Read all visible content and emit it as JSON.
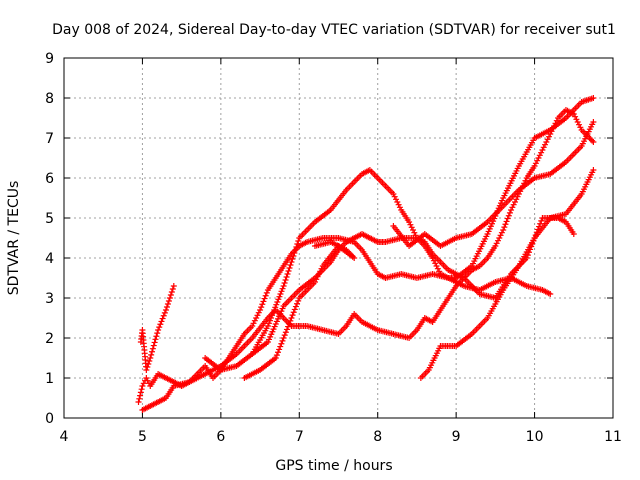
{
  "chart_data": {
    "type": "scatter",
    "title": "Day 008 of 2024, Sidereal Day-to-day VTEC variation (SDTVAR) for receiver sut1",
    "xlabel": "GPS time / hours",
    "ylabel": "SDTVAR / TECUs",
    "xlim": [
      4,
      11
    ],
    "ylim": [
      0,
      9
    ],
    "xticks": [
      "4",
      "5",
      "6",
      "7",
      "8",
      "9",
      "10",
      "11"
    ],
    "yticks": [
      "0",
      "1",
      "2",
      "3",
      "4",
      "5",
      "6",
      "7",
      "8",
      "9"
    ],
    "grid": true,
    "marker": "+",
    "series_color": "#ff0000",
    "series": [
      {
        "points": [
          [
            4.98,
            1.9
          ],
          [
            5.0,
            2.2
          ],
          [
            5.05,
            1.2
          ],
          [
            5.1,
            1.5
          ],
          [
            5.2,
            2.2
          ],
          [
            5.3,
            2.7
          ],
          [
            5.4,
            3.3
          ]
        ]
      },
      {
        "points": [
          [
            4.95,
            0.4
          ],
          [
            5.0,
            0.8
          ],
          [
            5.05,
            1.0
          ],
          [
            5.1,
            0.8
          ],
          [
            5.2,
            1.1
          ],
          [
            5.3,
            1.0
          ],
          [
            5.4,
            0.9
          ],
          [
            5.5,
            0.8
          ],
          [
            5.6,
            0.9
          ],
          [
            5.7,
            1.1
          ],
          [
            5.8,
            1.3
          ],
          [
            5.9,
            1.0
          ],
          [
            6.0,
            1.2
          ],
          [
            6.1,
            1.5
          ],
          [
            6.2,
            1.8
          ],
          [
            6.3,
            2.1
          ],
          [
            6.4,
            2.3
          ],
          [
            6.5,
            2.7
          ],
          [
            6.6,
            3.2
          ],
          [
            6.7,
            3.5
          ],
          [
            6.8,
            3.8
          ],
          [
            6.9,
            4.1
          ],
          [
            7.0,
            4.3
          ],
          [
            7.1,
            4.4
          ],
          [
            7.3,
            4.5
          ],
          [
            7.5,
            4.5
          ],
          [
            7.7,
            4.4
          ],
          [
            7.8,
            4.2
          ],
          [
            7.9,
            3.9
          ],
          [
            8.0,
            3.6
          ],
          [
            8.1,
            3.5
          ],
          [
            8.3,
            3.6
          ],
          [
            8.5,
            3.5
          ],
          [
            8.7,
            3.6
          ],
          [
            8.9,
            3.5
          ],
          [
            9.1,
            3.3
          ],
          [
            9.3,
            3.2
          ],
          [
            9.5,
            3.4
          ],
          [
            9.7,
            3.5
          ],
          [
            9.9,
            3.3
          ],
          [
            10.1,
            3.2
          ],
          [
            10.2,
            3.1
          ]
        ]
      },
      {
        "points": [
          [
            5.0,
            0.2
          ],
          [
            5.1,
            0.3
          ],
          [
            5.2,
            0.4
          ],
          [
            5.3,
            0.5
          ],
          [
            5.4,
            0.8
          ],
          [
            5.6,
            0.9
          ],
          [
            5.8,
            1.1
          ],
          [
            6.0,
            1.3
          ],
          [
            6.2,
            1.6
          ],
          [
            6.4,
            2.0
          ],
          [
            6.6,
            2.5
          ],
          [
            6.7,
            2.7
          ],
          [
            6.8,
            2.5
          ],
          [
            6.9,
            2.3
          ],
          [
            7.1,
            2.3
          ],
          [
            7.3,
            2.2
          ],
          [
            7.5,
            2.1
          ],
          [
            7.6,
            2.3
          ],
          [
            7.7,
            2.6
          ],
          [
            7.8,
            2.4
          ],
          [
            8.0,
            2.2
          ],
          [
            8.2,
            2.1
          ],
          [
            8.4,
            2.0
          ],
          [
            8.5,
            2.2
          ],
          [
            8.6,
            2.5
          ],
          [
            8.7,
            2.4
          ],
          [
            8.8,
            2.7
          ],
          [
            8.9,
            3.0
          ],
          [
            9.0,
            3.3
          ],
          [
            9.1,
            3.5
          ],
          [
            9.2,
            3.7
          ],
          [
            9.3,
            3.8
          ],
          [
            9.4,
            4.0
          ],
          [
            9.5,
            4.3
          ],
          [
            9.6,
            4.7
          ],
          [
            9.7,
            5.2
          ],
          [
            9.8,
            5.6
          ],
          [
            9.9,
            6.0
          ],
          [
            10.0,
            6.3
          ],
          [
            10.1,
            6.7
          ],
          [
            10.2,
            7.1
          ],
          [
            10.3,
            7.5
          ],
          [
            10.4,
            7.7
          ],
          [
            10.5,
            7.6
          ],
          [
            10.6,
            7.2
          ],
          [
            10.7,
            7.0
          ],
          [
            10.75,
            6.9
          ]
        ]
      },
      {
        "points": [
          [
            5.8,
            1.5
          ],
          [
            6.0,
            1.2
          ],
          [
            6.2,
            1.3
          ],
          [
            6.4,
            1.6
          ],
          [
            6.6,
            1.9
          ],
          [
            6.8,
            2.8
          ],
          [
            7.0,
            3.2
          ],
          [
            7.2,
            3.5
          ],
          [
            7.4,
            3.9
          ],
          [
            7.5,
            4.2
          ],
          [
            7.6,
            4.4
          ],
          [
            7.7,
            4.5
          ],
          [
            7.8,
            4.6
          ],
          [
            7.9,
            4.5
          ],
          [
            8.0,
            4.4
          ],
          [
            8.1,
            4.4
          ],
          [
            8.3,
            4.5
          ],
          [
            8.5,
            4.5
          ],
          [
            8.6,
            4.4
          ],
          [
            8.7,
            4.1
          ],
          [
            8.9,
            3.7
          ],
          [
            9.1,
            3.5
          ],
          [
            9.3,
            3.1
          ],
          [
            9.5,
            3.0
          ],
          [
            9.7,
            3.6
          ],
          [
            9.9,
            4.0
          ],
          [
            10.0,
            4.5
          ],
          [
            10.1,
            5.0
          ],
          [
            10.3,
            5.0
          ],
          [
            10.4,
            4.9
          ],
          [
            10.5,
            4.6
          ]
        ]
      },
      {
        "points": [
          [
            6.3,
            1.0
          ],
          [
            6.5,
            1.2
          ],
          [
            6.7,
            1.5
          ],
          [
            6.8,
            2.0
          ],
          [
            6.9,
            2.5
          ],
          [
            7.0,
            3.0
          ],
          [
            7.2,
            3.4
          ],
          [
            7.3,
            3.8
          ],
          [
            7.5,
            4.3
          ],
          [
            7.7,
            4.0
          ],
          [
            7.6,
            4.2
          ],
          [
            7.4,
            4.4
          ],
          [
            7.2,
            4.3
          ]
        ]
      },
      {
        "points": [
          [
            6.4,
            1.6
          ],
          [
            6.6,
            2.3
          ],
          [
            6.8,
            3.3
          ],
          [
            7.0,
            4.5
          ],
          [
            7.2,
            4.9
          ],
          [
            7.4,
            5.2
          ],
          [
            7.6,
            5.7
          ],
          [
            7.8,
            6.1
          ],
          [
            7.9,
            6.2
          ],
          [
            8.0,
            6.0
          ],
          [
            8.1,
            5.8
          ],
          [
            8.2,
            5.6
          ],
          [
            8.3,
            5.2
          ],
          [
            8.4,
            4.9
          ],
          [
            8.5,
            4.5
          ],
          [
            8.6,
            4.3
          ],
          [
            8.7,
            4.0
          ],
          [
            8.8,
            3.6
          ],
          [
            8.9,
            3.5
          ],
          [
            9.0,
            3.5
          ],
          [
            9.2,
            3.8
          ],
          [
            9.4,
            4.6
          ],
          [
            9.6,
            5.5
          ],
          [
            9.8,
            6.3
          ],
          [
            10.0,
            7.0
          ],
          [
            10.2,
            7.2
          ],
          [
            10.4,
            7.5
          ],
          [
            10.6,
            7.9
          ],
          [
            10.75,
            8.0
          ]
        ]
      },
      {
        "points": [
          [
            8.55,
            1.0
          ],
          [
            8.65,
            1.2
          ],
          [
            8.8,
            1.8
          ],
          [
            9.0,
            1.8
          ],
          [
            9.2,
            2.1
          ],
          [
            9.4,
            2.5
          ],
          [
            9.6,
            3.2
          ],
          [
            9.8,
            3.8
          ],
          [
            10.0,
            4.5
          ],
          [
            10.2,
            5.0
          ],
          [
            10.4,
            5.1
          ],
          [
            10.6,
            5.6
          ],
          [
            10.75,
            6.2
          ]
        ]
      },
      {
        "points": [
          [
            8.2,
            4.8
          ],
          [
            8.4,
            4.3
          ],
          [
            8.6,
            4.6
          ],
          [
            8.8,
            4.3
          ],
          [
            9.0,
            4.5
          ],
          [
            9.2,
            4.6
          ],
          [
            9.4,
            4.9
          ],
          [
            9.6,
            5.3
          ],
          [
            9.8,
            5.7
          ],
          [
            10.0,
            6.0
          ],
          [
            10.2,
            6.1
          ],
          [
            10.4,
            6.4
          ],
          [
            10.6,
            6.8
          ],
          [
            10.75,
            7.4
          ]
        ]
      }
    ]
  }
}
